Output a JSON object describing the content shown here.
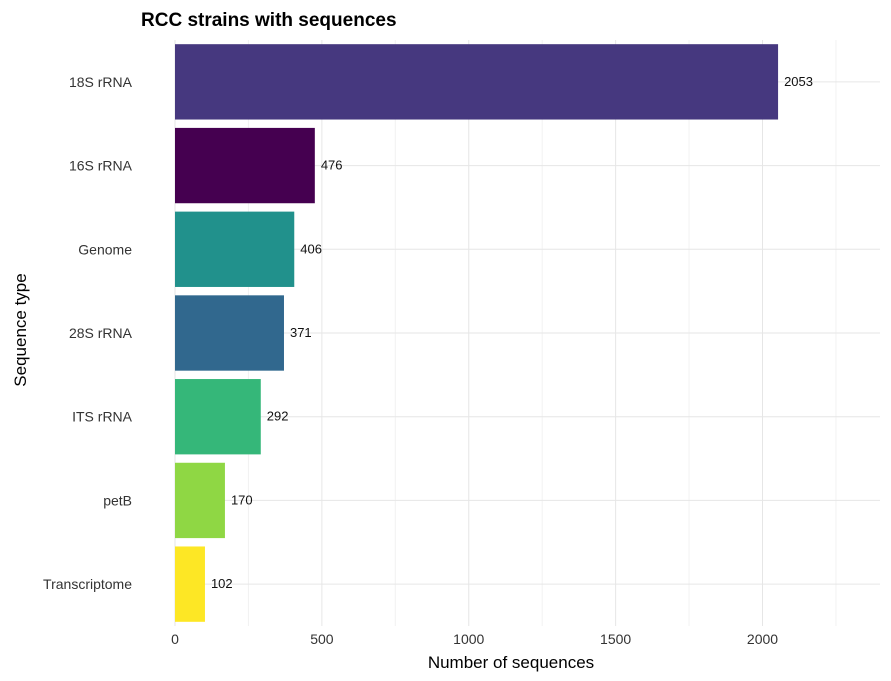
{
  "chart_data": {
    "type": "bar",
    "orientation": "horizontal",
    "title": "RCC strains with sequences",
    "xlabel": "Number of sequences",
    "ylabel": "Sequence type",
    "categories": [
      "18S rRNA",
      "16S rRNA",
      "Genome",
      "28S rRNA",
      "ITS rRNA",
      "petB",
      "Transcriptome"
    ],
    "values": [
      2053,
      476,
      406,
      371,
      292,
      170,
      102
    ],
    "colors": [
      "#46387f",
      "#450050",
      "#21918c",
      "#31688e",
      "#35b779",
      "#8fd744",
      "#fde725"
    ],
    "data_labels": [
      "2053",
      "476",
      "406",
      "371",
      "292",
      "170",
      "102"
    ],
    "xlim": [
      0,
      2400
    ],
    "xticks": [
      0,
      500,
      1000,
      1500,
      2000
    ],
    "xtick_labels": [
      "0",
      "500",
      "1000",
      "1500",
      "2000"
    ],
    "grid": true,
    "legend": "none"
  }
}
